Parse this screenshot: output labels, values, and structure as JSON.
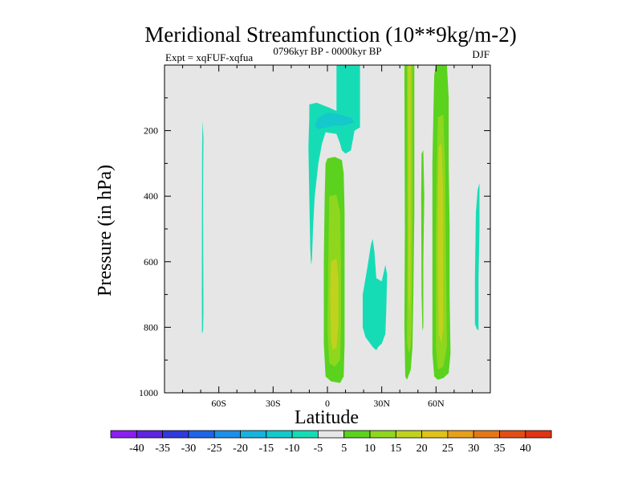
{
  "chart_data": {
    "type": "contour",
    "title": "Meridional Streamfunction (10**9kg/m-2)",
    "subtitle_left": "Expt = xqFUF-xqfua",
    "subtitle_center": "0796kyr BP - 0000kyr BP",
    "subtitle_right": "DJF",
    "xlabel": "Latitude",
    "ylabel": "Pressure (in hPa)",
    "xlim": [
      -90,
      90
    ],
    "ylim": [
      1000,
      0
    ],
    "x_ticks": [
      {
        "value": -60,
        "label": "60S"
      },
      {
        "value": -30,
        "label": "30S"
      },
      {
        "value": 0,
        "label": "0"
      },
      {
        "value": 30,
        "label": "30N"
      },
      {
        "value": 60,
        "label": "60N"
      }
    ],
    "y_ticks": [
      {
        "value": 200,
        "label": "200"
      },
      {
        "value": 400,
        "label": "400"
      },
      {
        "value": 600,
        "label": "600"
      },
      {
        "value": 800,
        "label": "800"
      },
      {
        "value": 1000,
        "label": "1000"
      }
    ],
    "levels": [
      {
        "label": "-40",
        "color": "#8a1ff0"
      },
      {
        "label": "-35",
        "color": "#5e25e0"
      },
      {
        "label": "-30",
        "color": "#2f3bdc"
      },
      {
        "label": "-25",
        "color": "#1f66e6"
      },
      {
        "label": "-20",
        "color": "#1c8fe8"
      },
      {
        "label": "-15",
        "color": "#16b2e0"
      },
      {
        "label": "-10",
        "color": "#14c8cc"
      },
      {
        "label": "-5",
        "color": "#16dcb6"
      },
      {
        "label": "5",
        "color": "#e6e6e6"
      },
      {
        "label": "10",
        "color": "#5ad21e"
      },
      {
        "label": "15",
        "color": "#8fd61e"
      },
      {
        "label": "20",
        "color": "#c0d21e"
      },
      {
        "label": "25",
        "color": "#e0c21a"
      },
      {
        "label": "30",
        "color": "#e6a01a"
      },
      {
        "label": "35",
        "color": "#e47818"
      },
      {
        "label": "40",
        "color": "#e24e16"
      }
    ],
    "extra_colorbar_box": "#e03414",
    "regions": [
      {
        "name": "sh-high-lat-weak-negative",
        "value": -7,
        "color": "#16dcb6",
        "polygon": [
          [
            -69,
            170
          ],
          [
            -68.5,
            220
          ],
          [
            -68.7,
            400
          ],
          [
            -68.6,
            600
          ],
          [
            -68.5,
            760
          ],
          [
            -68.7,
            810
          ],
          [
            -69.3,
            820
          ],
          [
            -69.4,
            700
          ],
          [
            -69.3,
            400
          ],
          [
            -69.2,
            250
          ]
        ]
      },
      {
        "name": "equatorial-upper-negative",
        "value": -7,
        "color": "#16dcb6",
        "polygon": [
          [
            -10,
            160
          ],
          [
            -10,
            120
          ],
          [
            -6,
            115
          ],
          [
            1,
            130
          ],
          [
            5,
            140
          ],
          [
            5,
            0
          ],
          [
            18,
            0
          ],
          [
            18,
            190
          ],
          [
            15,
            200
          ],
          [
            13,
            260
          ],
          [
            10,
            270
          ],
          [
            8,
            260
          ],
          [
            7,
            240
          ],
          [
            5,
            210
          ],
          [
            -1,
            205
          ],
          [
            -3,
            240
          ],
          [
            -5,
            300
          ],
          [
            -7,
            400
          ],
          [
            -8,
            500
          ],
          [
            -8.5,
            590
          ],
          [
            -9,
            610
          ],
          [
            -9.5,
            560
          ],
          [
            -10,
            400
          ],
          [
            -10.5,
            250
          ]
        ]
      },
      {
        "name": "equatorial-upper-core",
        "value": -12,
        "color": "#14c8cc",
        "polygon": [
          [
            -5,
            160
          ],
          [
            0,
            145
          ],
          [
            5,
            148
          ],
          [
            13,
            160
          ],
          [
            15,
            175
          ],
          [
            9,
            185
          ],
          [
            3,
            185
          ],
          [
            0,
            190
          ],
          [
            -5,
            195
          ],
          [
            -7,
            185
          ]
        ]
      },
      {
        "name": "equatorial-lower-positive",
        "value": 8,
        "color": "#5ad21e",
        "polygon": [
          [
            -1,
            300
          ],
          [
            0,
            285
          ],
          [
            4,
            280
          ],
          [
            8,
            290
          ],
          [
            9,
            330
          ],
          [
            9.5,
            450
          ],
          [
            9.5,
            700
          ],
          [
            9.5,
            850
          ],
          [
            9,
            950
          ],
          [
            7,
            970
          ],
          [
            2,
            965
          ],
          [
            -1,
            950
          ],
          [
            -2,
            850
          ],
          [
            -2,
            600
          ],
          [
            -1.5,
            400
          ]
        ]
      },
      {
        "name": "equatorial-lower-core",
        "value": 13,
        "color": "#8fd61e",
        "polygon": [
          [
            1,
            400
          ],
          [
            5,
            395
          ],
          [
            7,
            450
          ],
          [
            7.5,
            600
          ],
          [
            7.5,
            800
          ],
          [
            7,
            900
          ],
          [
            4,
            920
          ],
          [
            1,
            910
          ],
          [
            0,
            800
          ],
          [
            0.5,
            600
          ]
        ]
      },
      {
        "name": "equatorial-lower-peak",
        "value": 18,
        "color": "#c0d21e",
        "polygon": [
          [
            2,
            600
          ],
          [
            5,
            590
          ],
          [
            6,
            650
          ],
          [
            6,
            800
          ],
          [
            5,
            860
          ],
          [
            3,
            870
          ],
          [
            2,
            840
          ],
          [
            1.5,
            700
          ]
        ]
      },
      {
        "name": "subtropical-nh-negative",
        "value": -7,
        "color": "#16dcb6",
        "polygon": [
          [
            19.5,
            700
          ],
          [
            22,
            620
          ],
          [
            24,
            550
          ],
          [
            25,
            530
          ],
          [
            26,
            570
          ],
          [
            27,
            650
          ],
          [
            30,
            660
          ],
          [
            32,
            610
          ],
          [
            33,
            640
          ],
          [
            32.5,
            750
          ],
          [
            32,
            820
          ],
          [
            30,
            850
          ],
          [
            28,
            860
          ],
          [
            27,
            870
          ],
          [
            25,
            860
          ],
          [
            21,
            830
          ],
          [
            19.5,
            800
          ]
        ]
      },
      {
        "name": "nh-mid-lat-positive",
        "value": 8,
        "color": "#5ad21e",
        "polygon": [
          [
            42.5,
            0
          ],
          [
            48,
            0
          ],
          [
            48,
            450
          ],
          [
            47.5,
            700
          ],
          [
            47,
            860
          ],
          [
            46,
            930
          ],
          [
            44,
            960
          ],
          [
            43,
            950
          ],
          [
            42.5,
            800
          ],
          [
            42.8,
            500
          ]
        ]
      },
      {
        "name": "nh-mid-lat-core",
        "value": 13,
        "color": "#8fd61e",
        "polygon": [
          [
            44,
            0
          ],
          [
            47,
            0
          ],
          [
            47,
            500
          ],
          [
            46.5,
            800
          ],
          [
            46,
            860
          ],
          [
            45,
            880
          ],
          [
            44,
            850
          ],
          [
            44.2,
            500
          ]
        ]
      },
      {
        "name": "nh-mid-lat-peak",
        "value": 18,
        "color": "#c0d21e",
        "polygon": [
          [
            44.5,
            0
          ],
          [
            46,
            0
          ],
          [
            46,
            300
          ],
          [
            45.8,
            700
          ],
          [
            45.3,
            760
          ],
          [
            44.8,
            700
          ],
          [
            44.6,
            300
          ]
        ]
      },
      {
        "name": "nh-narrow-positive",
        "value": 8,
        "color": "#5ad21e",
        "polygon": [
          [
            52,
            270
          ],
          [
            53,
            260
          ],
          [
            53.5,
            400
          ],
          [
            53,
            600
          ],
          [
            53,
            800
          ],
          [
            52.5,
            810
          ],
          [
            52,
            700
          ],
          [
            51.8,
            400
          ]
        ]
      },
      {
        "name": "nh-high-lat-positive",
        "value": 8,
        "color": "#5ad21e",
        "polygon": [
          [
            59,
            30
          ],
          [
            60,
            0
          ],
          [
            66,
            0
          ],
          [
            67,
            100
          ],
          [
            67,
            300
          ],
          [
            67.5,
            500
          ],
          [
            67.5,
            700
          ],
          [
            68,
            880
          ],
          [
            67,
            940
          ],
          [
            65,
            950
          ],
          [
            64,
            955
          ],
          [
            61,
            960
          ],
          [
            59,
            950
          ],
          [
            58,
            880
          ],
          [
            58,
            600
          ],
          [
            58,
            300
          ],
          [
            58.5,
            150
          ]
        ]
      },
      {
        "name": "nh-high-lat-core",
        "value": 13,
        "color": "#8fd61e",
        "polygon": [
          [
            61,
            160
          ],
          [
            64,
            150
          ],
          [
            65,
            300
          ],
          [
            65.5,
            600
          ],
          [
            66,
            860
          ],
          [
            64,
            920
          ],
          [
            61,
            930
          ],
          [
            60,
            860
          ],
          [
            60,
            500
          ],
          [
            60.5,
            300
          ]
        ]
      },
      {
        "name": "nh-high-lat-peak",
        "value": 18,
        "color": "#c0d21e",
        "polygon": [
          [
            61.5,
            250
          ],
          [
            63,
            240
          ],
          [
            64,
            400
          ],
          [
            64,
            800
          ],
          [
            63,
            850
          ],
          [
            61.5,
            820
          ],
          [
            61,
            600
          ],
          [
            61,
            400
          ]
        ]
      },
      {
        "name": "polar-nh-negative",
        "value": -7,
        "color": "#16dcb6",
        "polygon": [
          [
            82,
            450
          ],
          [
            83,
            380
          ],
          [
            84,
            360
          ],
          [
            84,
            500
          ],
          [
            83.5,
            650
          ],
          [
            83.5,
            810
          ],
          [
            82.5,
            805
          ],
          [
            81.5,
            790
          ],
          [
            81.5,
            650
          ]
        ]
      }
    ]
  }
}
